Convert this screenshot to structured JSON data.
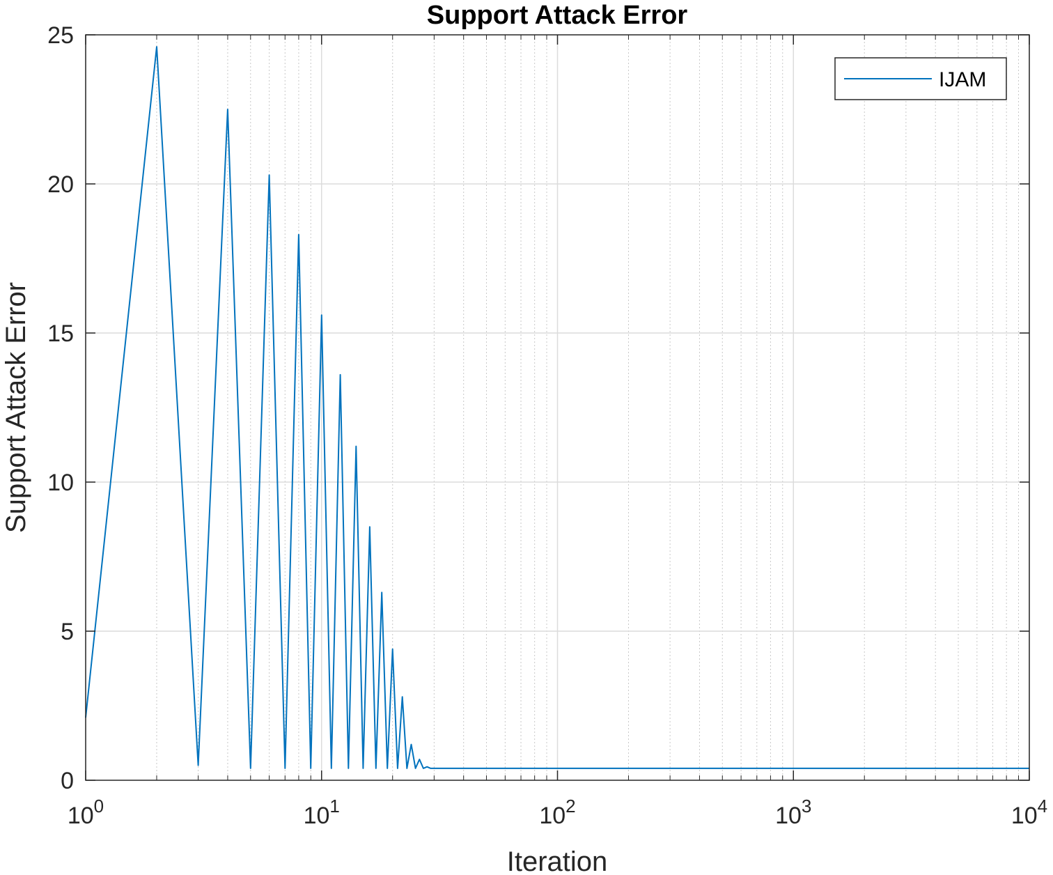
{
  "chart_data": {
    "type": "line",
    "title": "Support Attack Error",
    "xlabel": "Iteration",
    "ylabel": "Support Attack Error",
    "xscale": "log",
    "xlim": [
      1,
      10000
    ],
    "ylim": [
      0,
      25
    ],
    "grid": true,
    "minor_grid_x": true,
    "legend_position": "top-right",
    "xticks": [
      {
        "value": 1,
        "base": "10",
        "exp": "0"
      },
      {
        "value": 10,
        "base": "10",
        "exp": "1"
      },
      {
        "value": 100,
        "base": "10",
        "exp": "2"
      },
      {
        "value": 1000,
        "base": "10",
        "exp": "3"
      },
      {
        "value": 10000,
        "base": "10",
        "exp": "4"
      }
    ],
    "yticks": [
      {
        "value": 0,
        "label": "0"
      },
      {
        "value": 5,
        "label": "5"
      },
      {
        "value": 10,
        "label": "10"
      },
      {
        "value": 15,
        "label": "15"
      },
      {
        "value": 20,
        "label": "20"
      },
      {
        "value": 25,
        "label": "25"
      }
    ],
    "series": [
      {
        "name": "IJAM",
        "color": "#0072BD",
        "x": [
          1,
          2,
          3,
          4,
          5,
          6,
          7,
          8,
          9,
          10,
          11,
          12,
          13,
          14,
          15,
          16,
          17,
          18,
          19,
          20,
          21,
          22,
          23,
          24,
          25,
          26,
          27,
          28,
          29,
          30,
          50,
          100,
          1000,
          10000
        ],
        "y": [
          2.1,
          24.6,
          0.5,
          22.5,
          0.4,
          20.3,
          0.4,
          18.3,
          0.4,
          15.6,
          0.4,
          13.6,
          0.4,
          11.2,
          0.4,
          8.5,
          0.4,
          6.3,
          0.4,
          4.4,
          0.4,
          2.8,
          0.4,
          1.2,
          0.4,
          0.7,
          0.4,
          0.45,
          0.4,
          0.4,
          0.4,
          0.4,
          0.4,
          0.4
        ]
      }
    ]
  }
}
